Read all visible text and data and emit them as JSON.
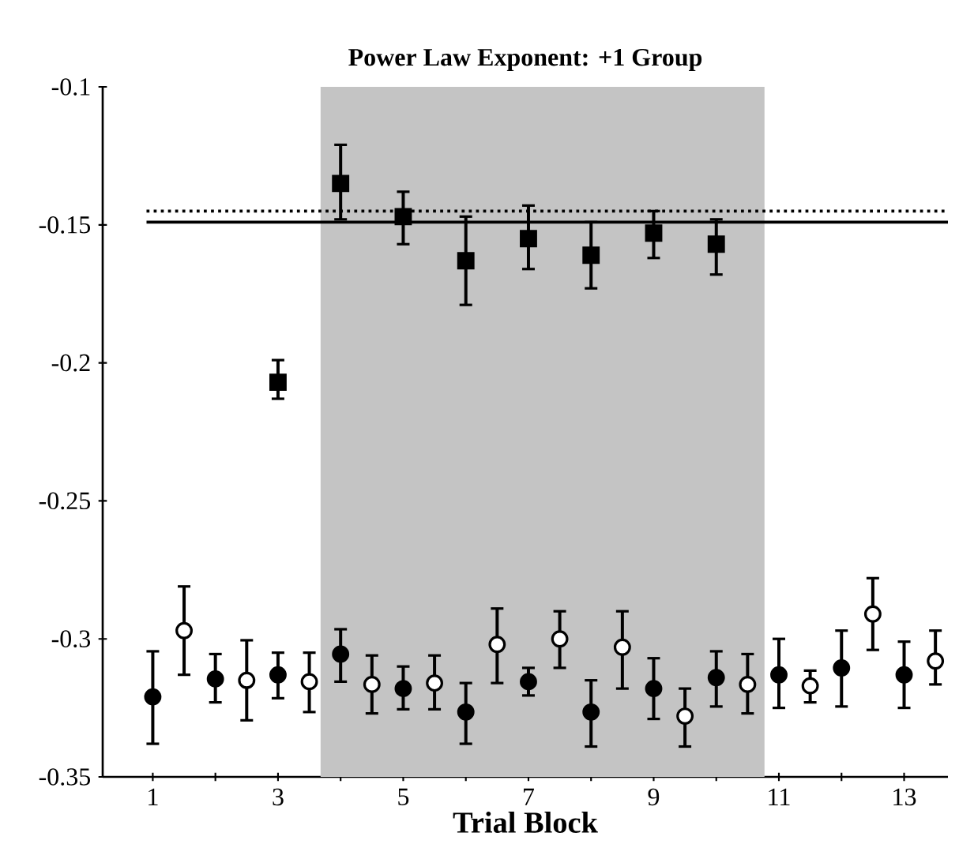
{
  "chart_data": {
    "type": "scatter",
    "title": "Power Law Exponent: +1 Group",
    "xlabel": "Trial Block",
    "xlim": [
      0.2,
      13.7
    ],
    "ylim": [
      -0.35,
      -0.1
    ],
    "xticks": [
      1,
      {
        "value": 2,
        "label": null
      },
      3,
      {
        "value": 4,
        "label": null
      },
      5,
      {
        "value": 6,
        "label": null
      },
      7,
      {
        "value": 8,
        "label": null
      },
      9,
      {
        "value": 10,
        "label": null
      },
      11,
      {
        "value": 12,
        "label": null
      },
      13
    ],
    "yticks": [
      -0.35,
      -0.3,
      -0.25,
      -0.2,
      -0.15,
      -0.1
    ],
    "grid": false,
    "bands": [
      {
        "axis": "x",
        "from": 3.68,
        "to": 10.77,
        "color": "#c4c4c4"
      }
    ],
    "ref_lines": [
      {
        "axis": "y",
        "value": -0.145,
        "line_style": "dotted",
        "color": "#000000"
      },
      {
        "axis": "y",
        "value": -0.149,
        "line_style": "solid",
        "color": "#000000"
      }
    ],
    "series": [
      {
        "color": "#000000",
        "marker": "square",
        "x": [
          3,
          4,
          5,
          6,
          7,
          8,
          9,
          10
        ],
        "values": [
          -0.207,
          -0.135,
          -0.147,
          -0.163,
          -0.155,
          -0.161,
          -0.153,
          -0.157
        ],
        "errors": [
          [
            -0.213,
            -0.199
          ],
          [
            -0.148,
            -0.121
          ],
          [
            -0.157,
            -0.138
          ],
          [
            -0.179,
            -0.147
          ],
          [
            -0.166,
            -0.143
          ],
          [
            -0.173,
            -0.149
          ],
          [
            -0.162,
            -0.145
          ],
          [
            -0.168,
            -0.148
          ]
        ]
      },
      {
        "color": "#000000",
        "marker": "circle",
        "x": [
          1,
          2,
          3,
          4,
          5,
          6,
          7,
          8,
          9,
          10,
          11,
          12,
          13
        ],
        "values": [
          -0.321,
          -0.3145,
          -0.313,
          -0.3055,
          -0.318,
          -0.3265,
          -0.3155,
          -0.3265,
          -0.318,
          -0.314,
          -0.313,
          -0.3105,
          -0.313
        ],
        "errors": [
          [
            -0.338,
            -0.3045
          ],
          [
            -0.323,
            -0.3055
          ],
          [
            -0.3215,
            -0.305
          ],
          [
            -0.3155,
            -0.2965
          ],
          [
            -0.3255,
            -0.31
          ],
          [
            -0.338,
            -0.316
          ],
          [
            -0.3205,
            -0.3105
          ],
          [
            -0.339,
            -0.315
          ],
          [
            -0.329,
            -0.307
          ],
          [
            -0.3245,
            -0.3045
          ],
          [
            -0.325,
            -0.3
          ],
          [
            -0.3245,
            -0.297
          ],
          [
            -0.325,
            -0.301
          ]
        ]
      },
      {
        "color": "#ffffff",
        "marker": "circle",
        "x": [
          1.5,
          2.5,
          3.5,
          4.5,
          5.5,
          6.5,
          7.5,
          8.5,
          9.5,
          10.5,
          11.5,
          12.5,
          13.5
        ],
        "values": [
          -0.297,
          -0.315,
          -0.3155,
          -0.3165,
          -0.316,
          -0.302,
          -0.3,
          -0.303,
          -0.328,
          -0.3165,
          -0.317,
          -0.291,
          -0.308
        ],
        "errors": [
          [
            -0.313,
            -0.281
          ],
          [
            -0.3295,
            -0.3005
          ],
          [
            -0.3265,
            -0.305
          ],
          [
            -0.327,
            -0.306
          ],
          [
            -0.3255,
            -0.306
          ],
          [
            -0.316,
            -0.289
          ],
          [
            -0.3105,
            -0.29
          ],
          [
            -0.318,
            -0.29
          ],
          [
            -0.339,
            -0.318
          ],
          [
            -0.327,
            -0.3055
          ],
          [
            -0.323,
            -0.3115
          ],
          [
            -0.304,
            -0.278
          ],
          [
            -0.3165,
            -0.297
          ]
        ]
      }
    ]
  }
}
